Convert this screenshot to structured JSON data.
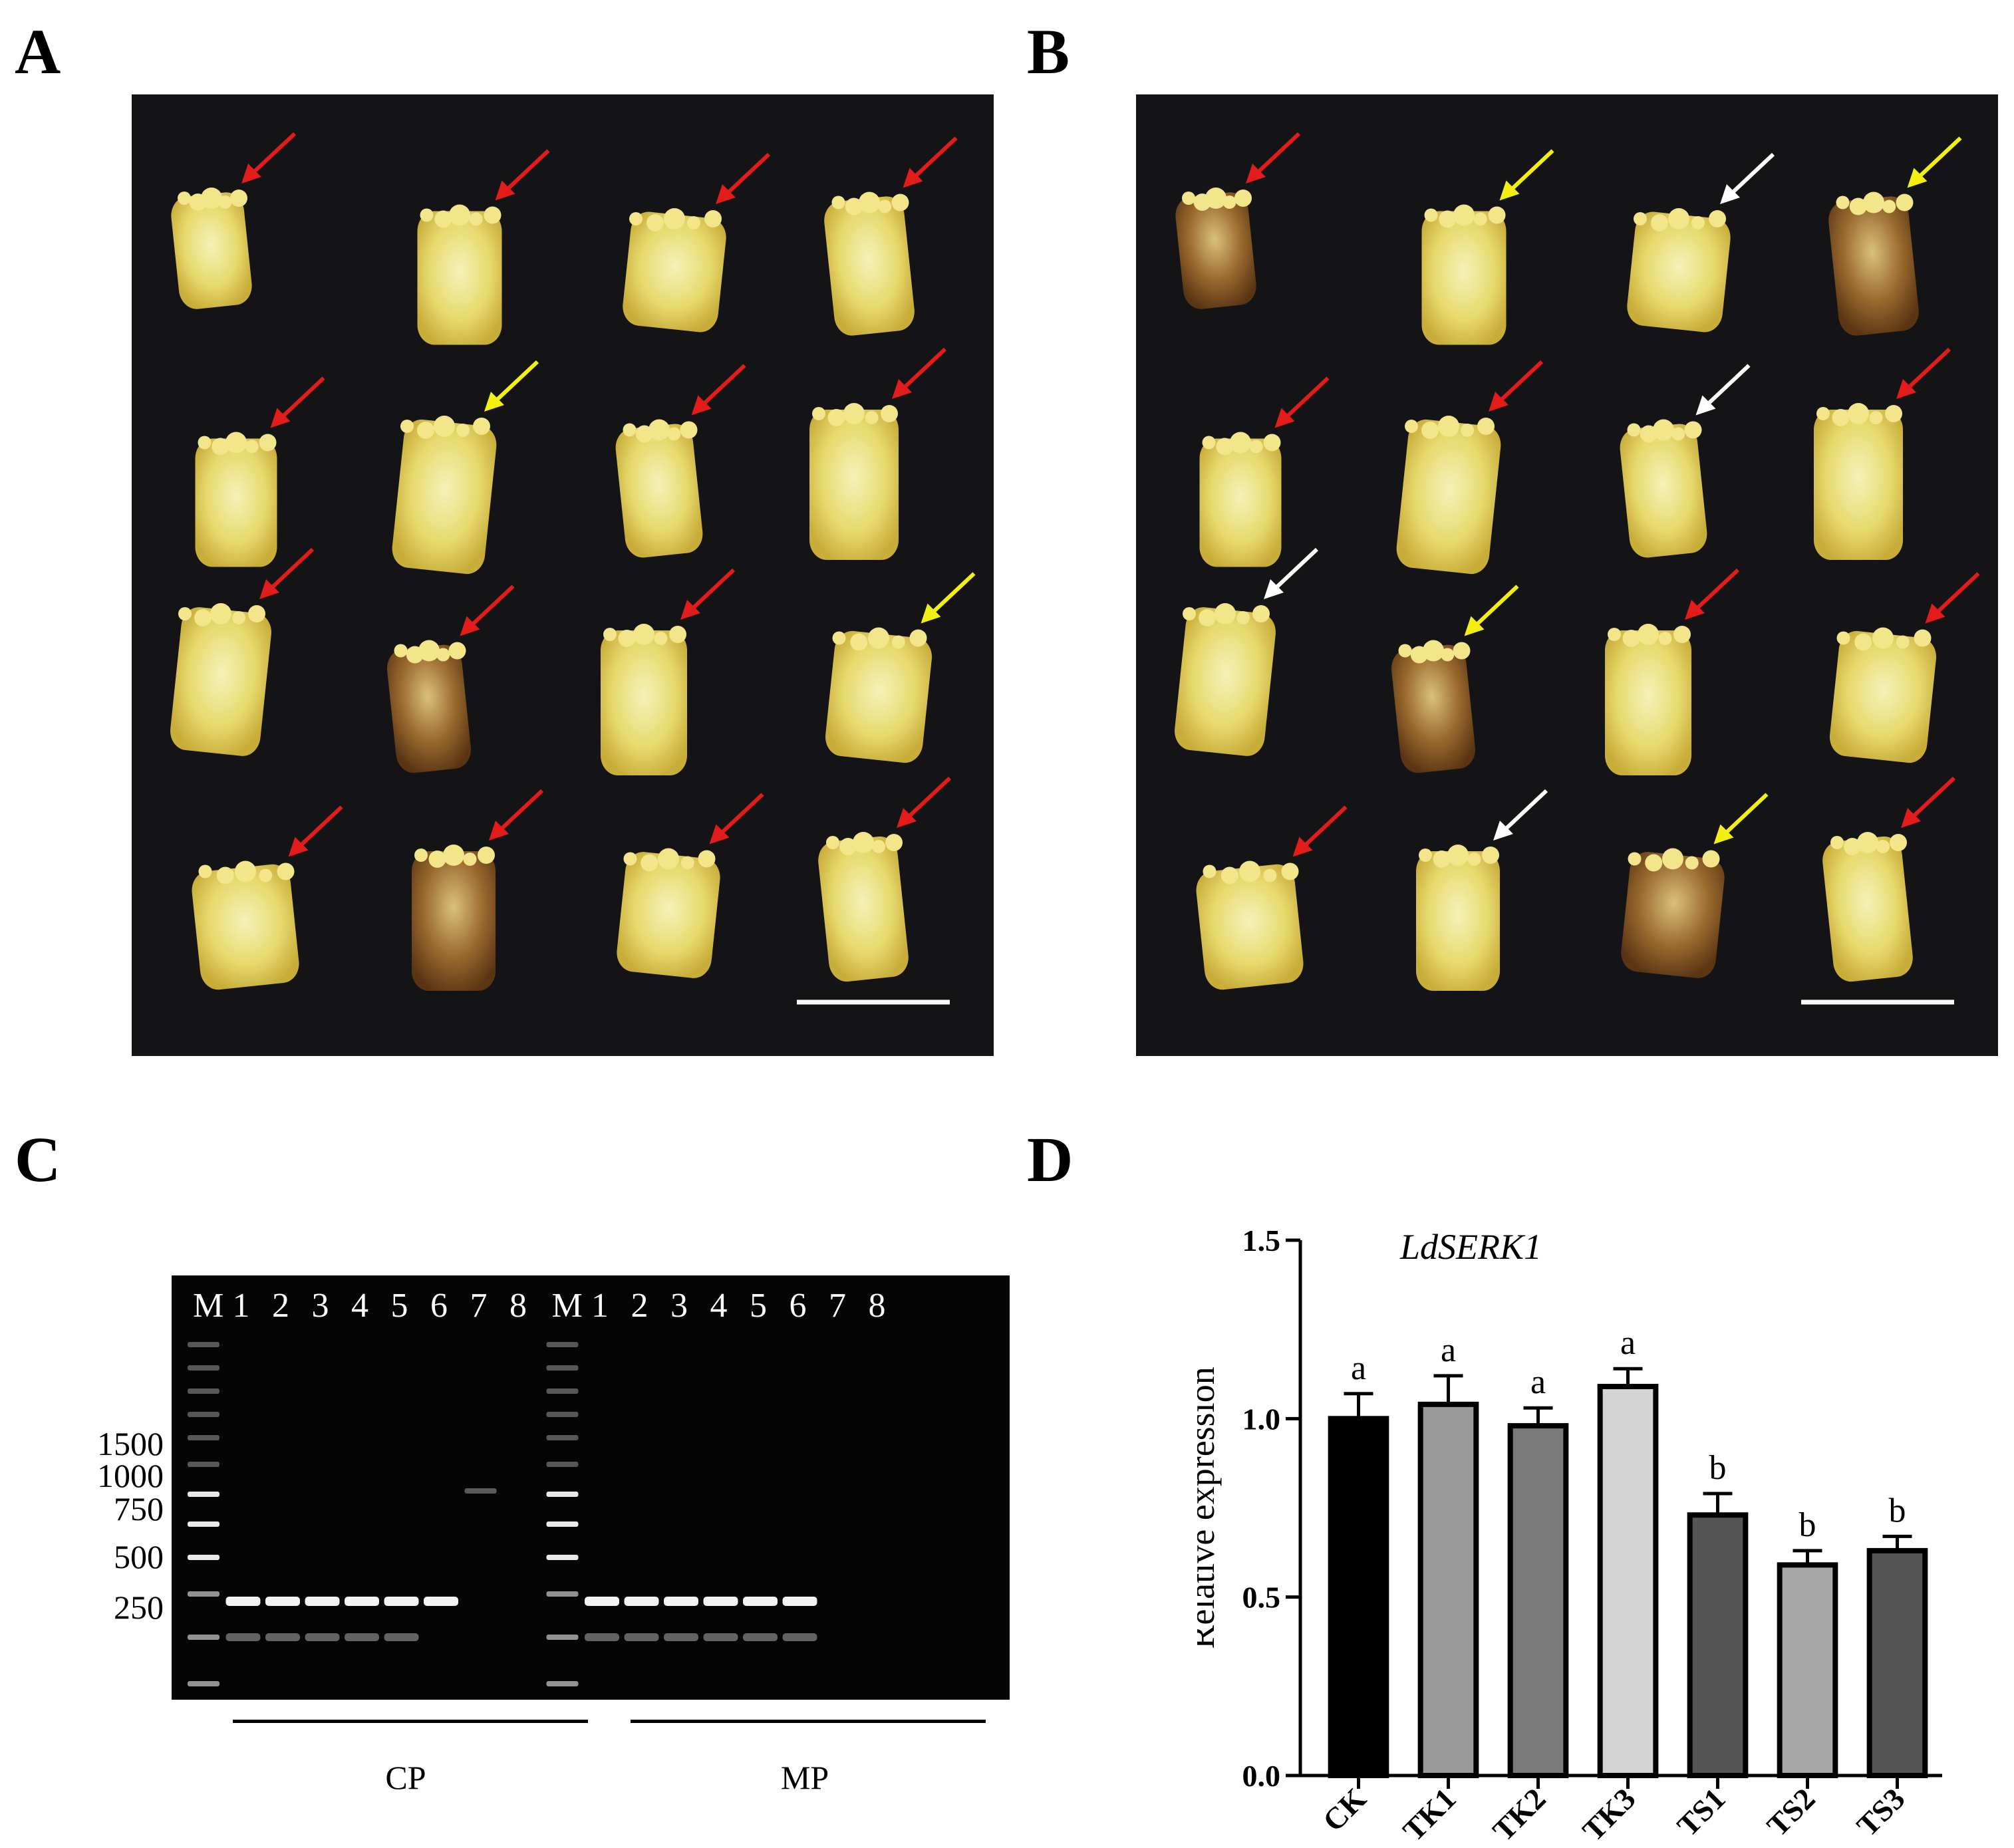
{
  "panels": {
    "a": {
      "letter": "A"
    },
    "b": {
      "letter": "B"
    },
    "c": {
      "letter": "C"
    },
    "d": {
      "letter": "D"
    }
  },
  "photo_a": {
    "arrow_colors_by_row": [
      [
        "red",
        "red",
        "red",
        "red"
      ],
      [
        "red",
        "yellow",
        "red",
        "red"
      ],
      [
        "red",
        "red",
        "red",
        "yellow"
      ],
      [
        "red",
        "red",
        "red",
        "red"
      ]
    ]
  },
  "photo_b": {
    "arrow_colors_by_row": [
      [
        "red",
        "yellow",
        "white",
        "yellow"
      ],
      [
        "red",
        "red",
        "white",
        "red"
      ],
      [
        "white",
        "yellow",
        "red",
        "red"
      ],
      [
        "red",
        "white",
        "yellow",
        "red"
      ]
    ]
  },
  "colors": {
    "red": "#e21b1b",
    "yellow": "#f4ef12",
    "white": "#ffffff"
  },
  "gel": {
    "lane_labels": [
      "M",
      "1",
      "2",
      "3",
      "4",
      "5",
      "6",
      "7",
      "8",
      "M",
      "1",
      "2",
      "3",
      "4",
      "5",
      "6",
      "7",
      "8"
    ],
    "marker_sizes": [
      "1500",
      "1000",
      "750",
      "500",
      "250"
    ],
    "groups": [
      "CP",
      "MP"
    ]
  },
  "chart_data": {
    "type": "bar",
    "title": "LdSERK1",
    "ylabel": "Relative expression",
    "xlabel": "",
    "categories": [
      "CK",
      "TK1",
      "TK2",
      "TK3",
      "TS1",
      "TS2",
      "TS3"
    ],
    "values": [
      1.0,
      1.04,
      0.98,
      1.09,
      0.73,
      0.59,
      0.63
    ],
    "errors": [
      0.07,
      0.08,
      0.05,
      0.05,
      0.06,
      0.04,
      0.04
    ],
    "significance": [
      "a",
      "a",
      "a",
      "a",
      "b",
      "b",
      "b"
    ],
    "bar_colors": [
      "#000000",
      "#9a9a9a",
      "#7a7a7a",
      "#d4d4d4",
      "#555555",
      "#a8a8a8",
      "#555555"
    ],
    "ylim": [
      0,
      1.5
    ],
    "yticks": [
      "0.0",
      "0.5",
      "1.0",
      "1.5"
    ]
  }
}
